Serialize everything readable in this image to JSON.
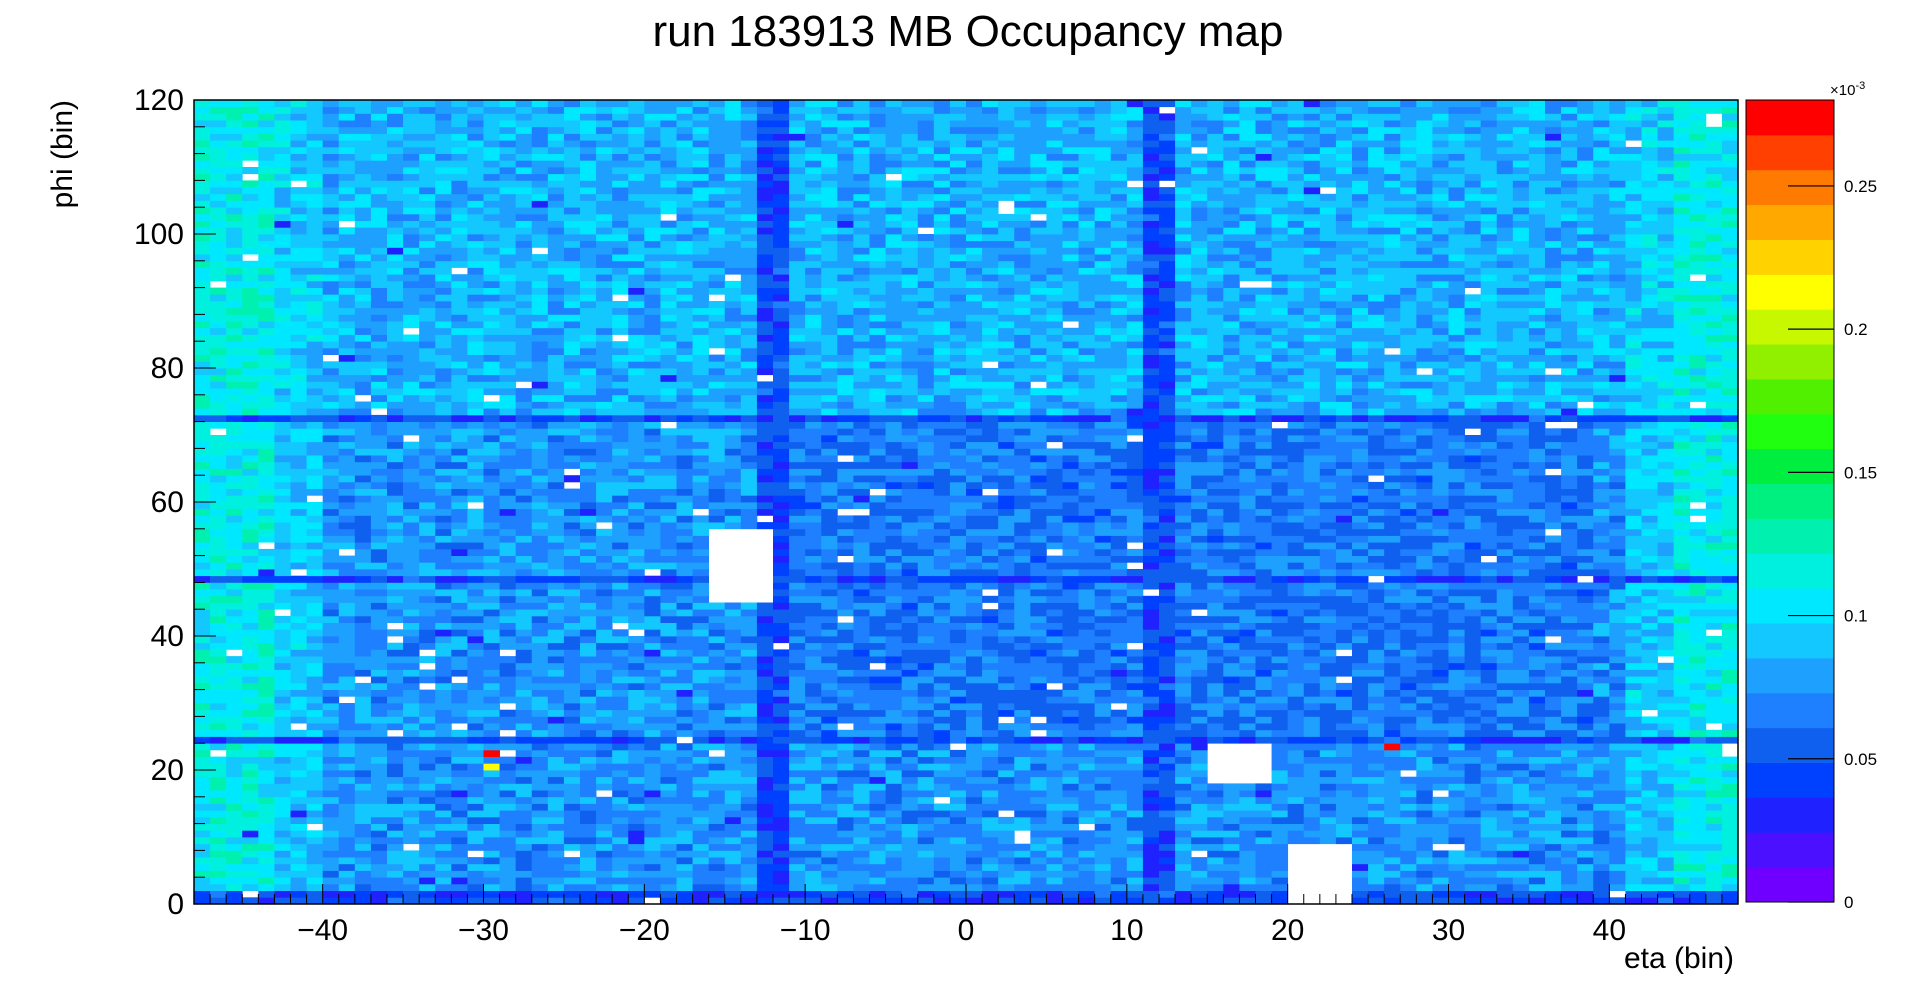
{
  "chart_data": {
    "type": "heatmap",
    "title": "run 183913 MB  Occupancy map",
    "xlabel": "eta (bin)",
    "ylabel": "phi (bin)",
    "xlim": [
      -48,
      48
    ],
    "ylim": [
      0,
      120
    ],
    "x_ticks": [
      -40,
      -30,
      -20,
      -10,
      0,
      10,
      20,
      30,
      40
    ],
    "x_tick_labels": [
      "−40",
      "−30",
      "−20",
      "−10",
      "0",
      "10",
      "20",
      "30",
      "40"
    ],
    "y_ticks": [
      0,
      20,
      40,
      60,
      80,
      100,
      120
    ],
    "y_tick_labels": [
      "0",
      "20",
      "40",
      "60",
      "80",
      "100",
      "120"
    ],
    "z_range": [
      0,
      0.28
    ],
    "z_exponent_label": "×10",
    "z_exponent_power": "-3",
    "z_ticks": [
      0,
      0.05,
      0.1,
      0.15,
      0.2,
      0.25
    ],
    "z_tick_labels": [
      "0",
      "0.05",
      "0.1",
      "0.15",
      "0.2",
      "0.25"
    ],
    "palette": [
      "#6f00ff",
      "#4b10ff",
      "#1f22ff",
      "#0040ff",
      "#1060f0",
      "#1e80ff",
      "#1ea0ff",
      "#13c8ff",
      "#00e8ff",
      "#00f0e0",
      "#00f0b0",
      "#00f080",
      "#00ee40",
      "#20ff10",
      "#50f000",
      "#90f000",
      "#c8f800",
      "#ffff00",
      "#ffd200",
      "#ffa800",
      "#ff7a00",
      "#ff4000",
      "#ff0000"
    ],
    "grid": false,
    "legend": "colorbar-right",
    "region_levels": {
      "low_cells": 0.03,
      "dead_rows_cols": 0.045,
      "central_region": 0.065,
      "middle_region": 0.075,
      "upper_region": 0.085,
      "outer_edges": 0.11
    },
    "cold_columns_eta": [
      -13,
      -12,
      11,
      12
    ],
    "cold_rows_phi": [
      0,
      1,
      24,
      48,
      72
    ],
    "empty_regions": [
      {
        "eta": [
          -16,
          -13
        ],
        "phi": [
          45,
          55
        ]
      },
      {
        "eta": [
          20,
          23
        ],
        "phi": [
          0,
          8
        ]
      },
      {
        "eta": [
          15,
          18
        ],
        "phi": [
          18,
          23
        ]
      }
    ],
    "hot_cells": [
      {
        "eta": -30,
        "phi": 22,
        "value": 0.27
      },
      {
        "eta": -30,
        "phi": 20,
        "value": 0.21
      },
      {
        "eta": 26,
        "phi": 23,
        "value": 0.27
      }
    ]
  }
}
